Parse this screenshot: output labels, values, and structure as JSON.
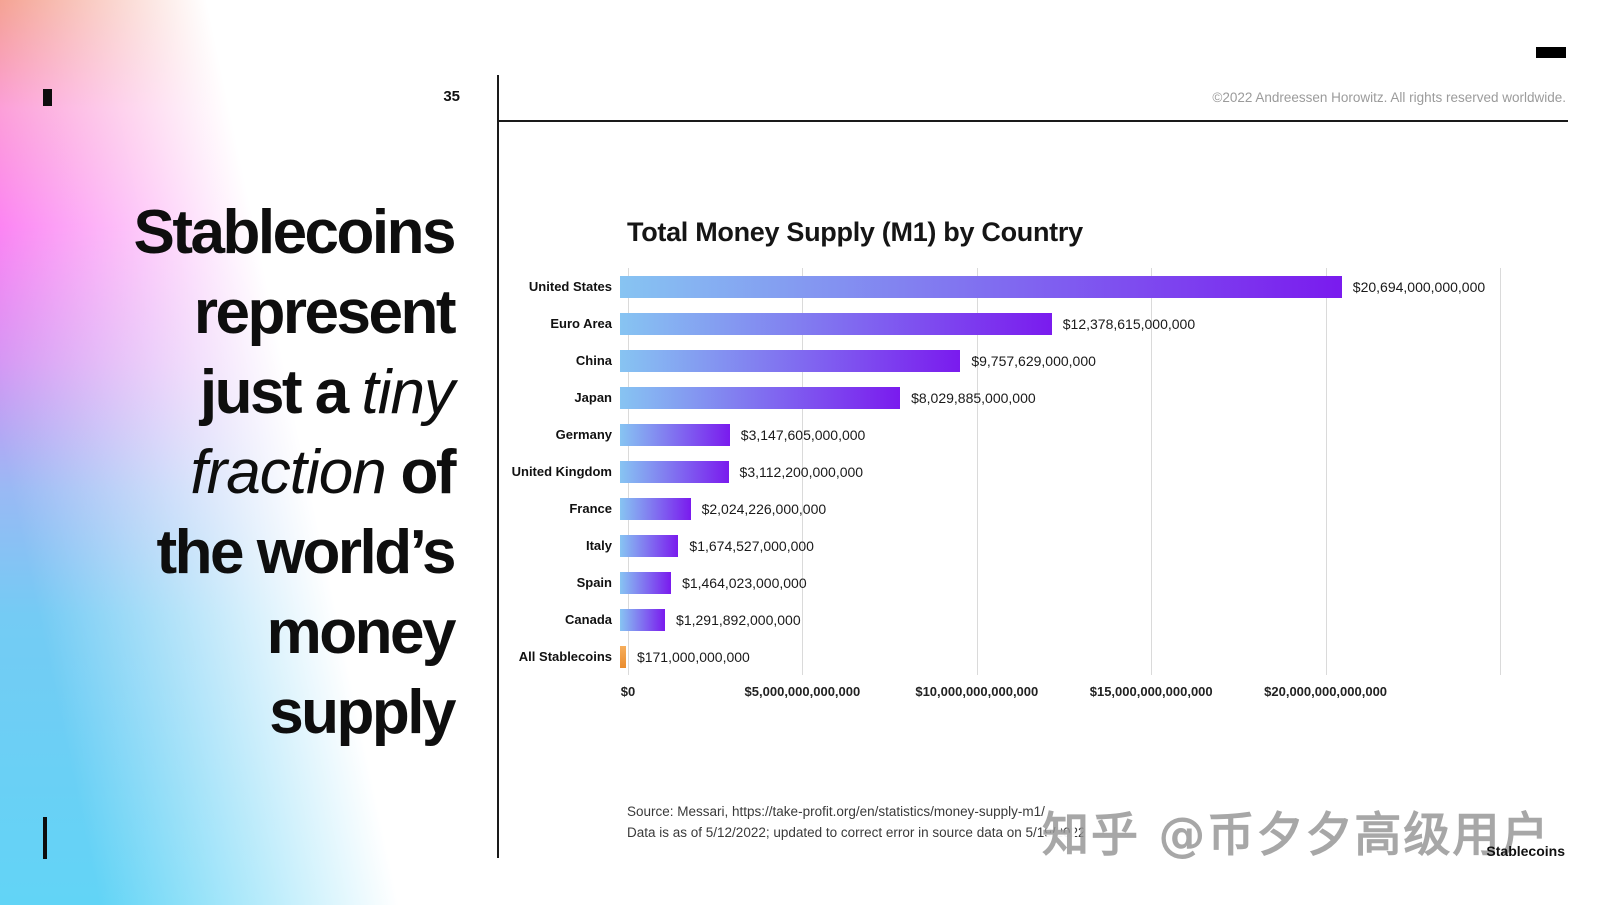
{
  "slide": {
    "page_number": "35",
    "copyright": "©2022 Andreessen Horowitz. All rights reserved worldwide.",
    "footer_tag": "Stablecoins",
    "watermark": "知乎 @币夕夕高级用户",
    "headline": {
      "lines": [
        {
          "segs": [
            {
              "t": "Stablecoins",
              "i": false
            }
          ]
        },
        {
          "segs": [
            {
              "t": "represent",
              "i": false
            }
          ]
        },
        {
          "segs": [
            {
              "t": "just a ",
              "i": false
            },
            {
              "t": "tiny",
              "i": true
            }
          ]
        },
        {
          "segs": [
            {
              "t": "fraction",
              "i": true
            },
            {
              "t": " of",
              "i": false
            }
          ]
        },
        {
          "segs": [
            {
              "t": "the world’s",
              "i": false
            }
          ]
        },
        {
          "segs": [
            {
              "t": "money",
              "i": false
            }
          ]
        },
        {
          "segs": [
            {
              "t": "supply",
              "i": false
            }
          ]
        }
      ]
    }
  },
  "chart_data": {
    "type": "bar",
    "orientation": "horizontal",
    "title": "Total Money Supply (M1) by Country",
    "categories": [
      "United States",
      "Euro Area",
      "China",
      "Japan",
      "Germany",
      "United Kingdom",
      "France",
      "Italy",
      "Spain",
      "Canada",
      "All Stablecoins"
    ],
    "values": [
      20694000000000,
      12378615000000,
      9757629000000,
      8029885000000,
      3147605000000,
      3112200000000,
      2024226000000,
      1674527000000,
      1464023000000,
      1291892000000,
      171000000000
    ],
    "value_labels": [
      "$20,694,000,000,000",
      "$12,378,615,000,000",
      "$9,757,629,000,000",
      "$8,029,885,000,000",
      "$3,147,605,000,000",
      "$3,112,200,000,000",
      "$2,024,226,000,000",
      "$1,674,527,000,000",
      "$1,464,023,000,000",
      "$1,291,892,000,000",
      "$171,000,000,000"
    ],
    "xlabel": "",
    "ylabel": "",
    "xlim": [
      0,
      25000000000000
    ],
    "x_ticks": [
      {
        "value": 0,
        "label": "$0"
      },
      {
        "value": 5000000000000,
        "label": "$5,000,000,000,000"
      },
      {
        "value": 10000000000000,
        "label": "$10,000,000,000,000"
      },
      {
        "value": 15000000000000,
        "label": "$15,000,000,000,000"
      },
      {
        "value": 20000000000000,
        "label": "$20,000,000,000,000"
      }
    ],
    "grid": "vertical",
    "legend": "none",
    "colors": {
      "bar_gradient": [
        "#87C4F2",
        "#7A1BEE"
      ],
      "highlight_gradient": [
        "#F6AE5C",
        "#EA8C2E"
      ],
      "highlight_category": "All Stablecoins",
      "gridline": "#DADADA"
    },
    "source_lines": [
      "Source: Messari, https://take-profit.org/en/statistics/money-supply-m1/",
      "Data is as of 5/12/2022; updated to correct error in source data on 5/19/2022"
    ]
  }
}
